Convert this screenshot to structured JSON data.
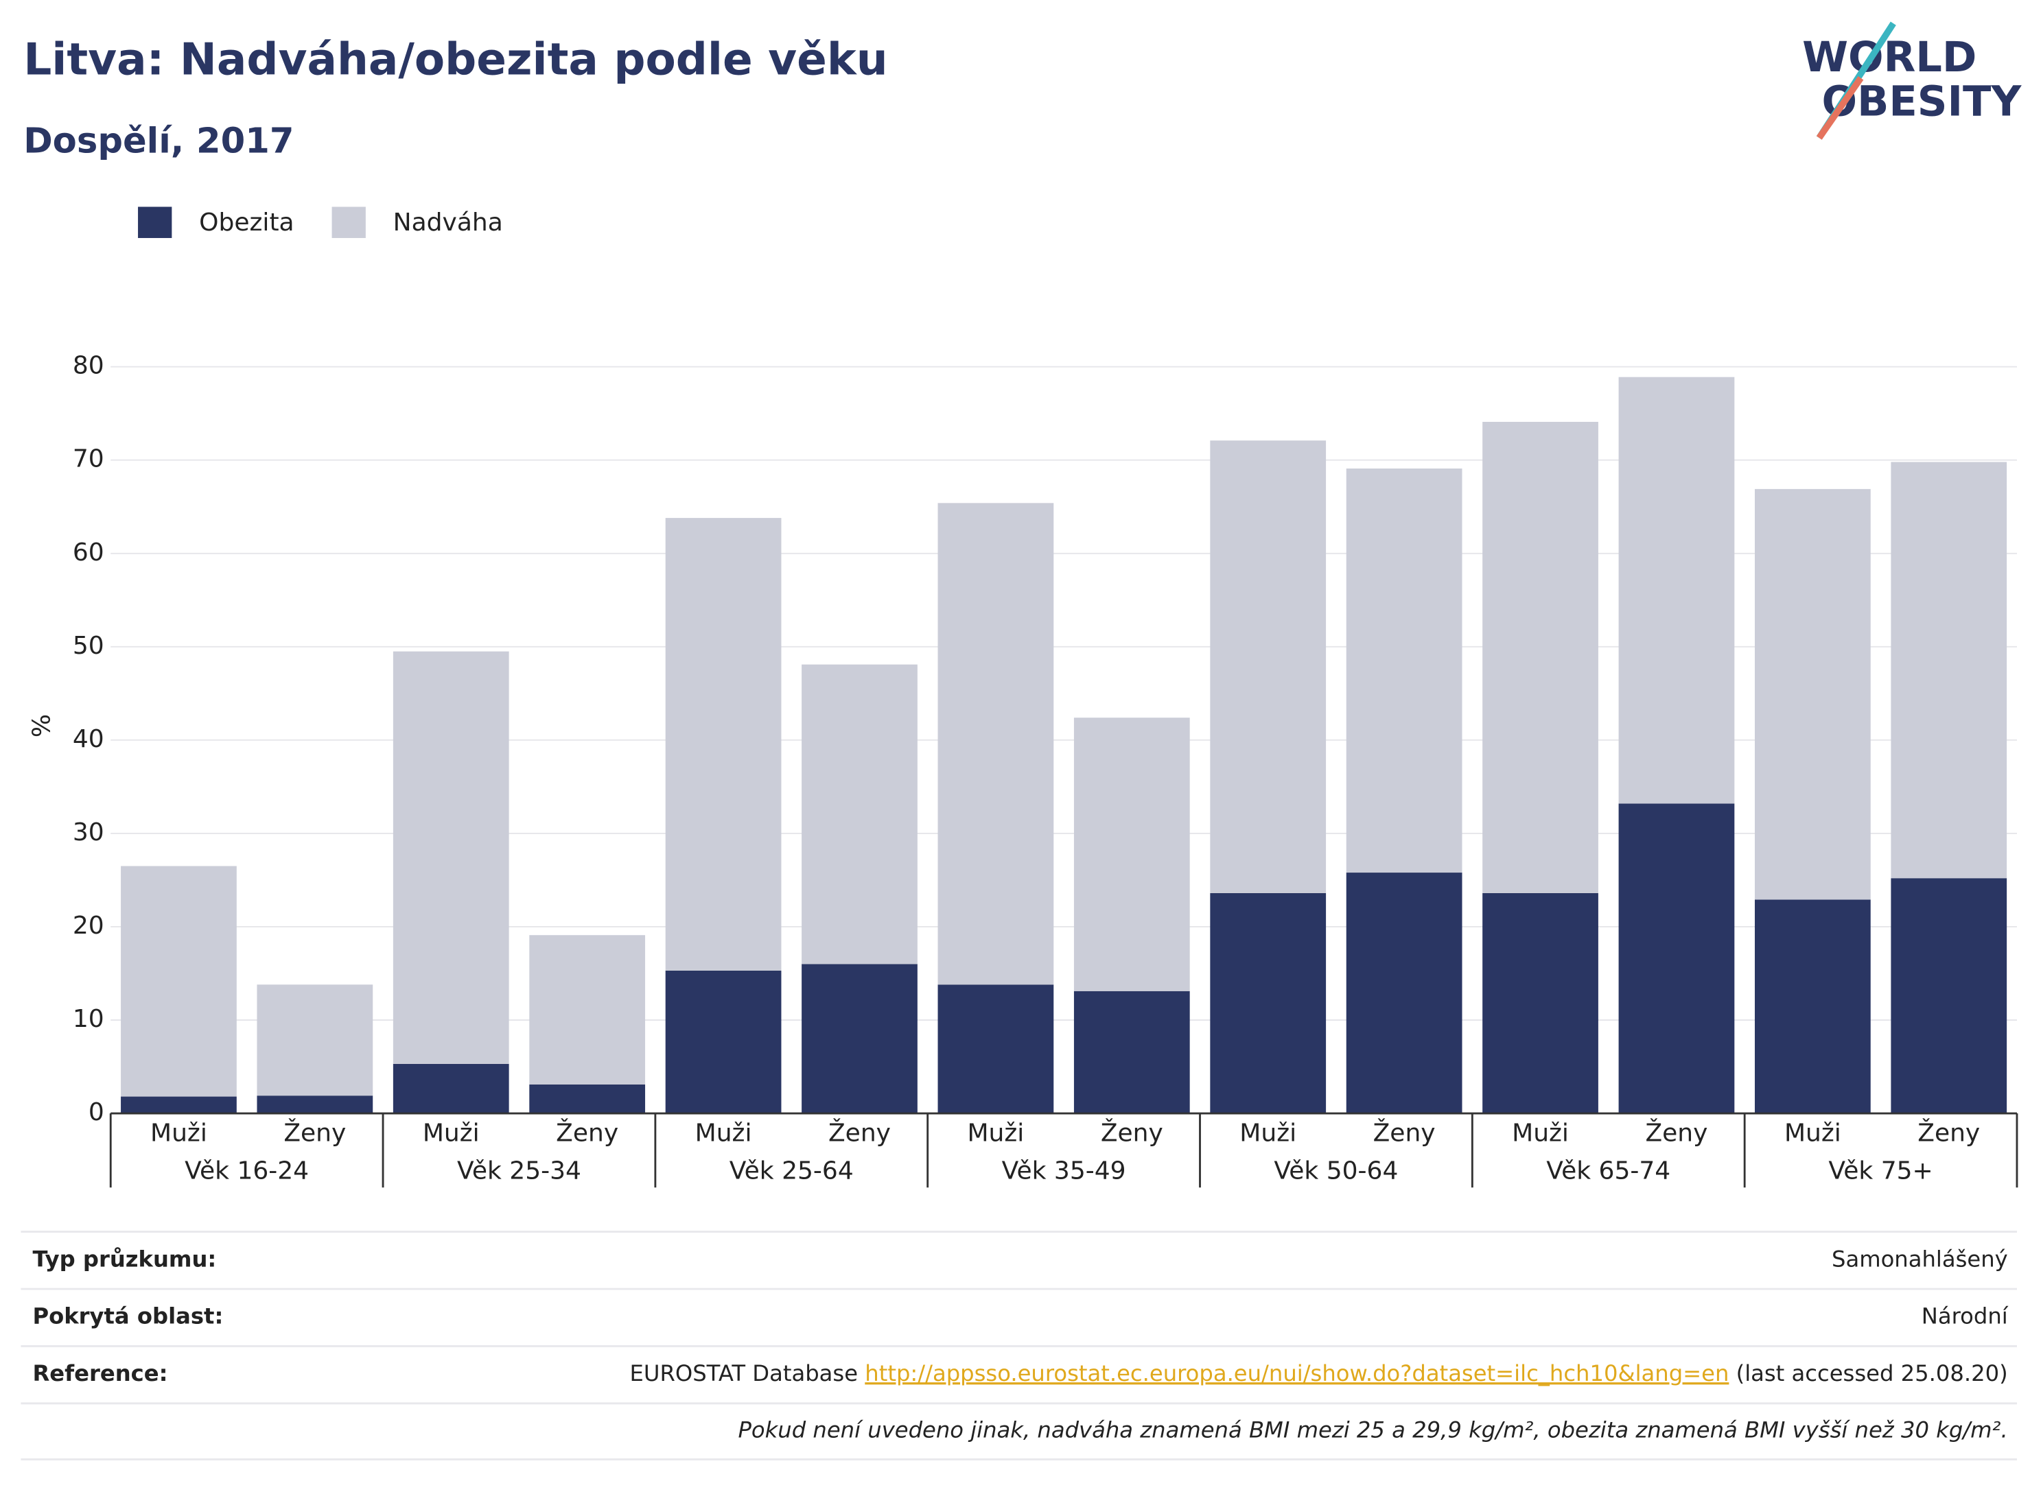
{
  "chart_data": {
    "type": "bar",
    "title": "Litva: Nadváha/obezita podle věku",
    "subtitle": "Dospělí, 2017",
    "logo": [
      "WORLD",
      "OBESITY"
    ],
    "y_label": "%",
    "categories": [
      "Muži",
      "Ženy",
      "Muži",
      "Ženy",
      "Muži",
      "Ženy",
      "Muži",
      "Ženy",
      "Muži",
      "Ženy",
      "Muži",
      "Ženy",
      "Muži",
      "Ženy"
    ],
    "groups": [
      "Věk 16-24",
      "Věk 25-34",
      "Věk 25-64",
      "Věk 35-49",
      "Věk 50-64",
      "Věk 65-74",
      "Věk 75+"
    ],
    "stacked": true,
    "series": [
      {
        "name": "Obezita",
        "color": "#2a3663",
        "values": [
          1.8,
          1.9,
          5.3,
          3.1,
          15.3,
          16.0,
          13.8,
          13.1,
          23.6,
          25.8,
          23.6,
          33.2,
          22.9,
          25.2
        ]
      },
      {
        "name": "Nadváha",
        "color": "#cbcdd8",
        "values": [
          24.7,
          11.9,
          44.2,
          16.0,
          48.5,
          32.1,
          51.6,
          29.3,
          48.5,
          43.3,
          50.5,
          45.7,
          44.0,
          44.6
        ]
      }
    ],
    "ylim": [
      0,
      80
    ],
    "yticks": [
      0,
      10,
      20,
      30,
      40,
      50,
      60,
      70,
      80
    ],
    "grid": true,
    "legend": "top-left"
  },
  "footer": {
    "rows": [
      {
        "label": "Typ průzkumu:",
        "value": "Samonahlášený"
      },
      {
        "label": "Pokrytá oblast:",
        "value": "Národní"
      },
      {
        "label": "Reference:",
        "value": [
          "EUROSTAT Database ",
          "http://appsso.eurostat.ec.europa.eu/nui/show.do?dataset=ilc_hch10&lang=en",
          " (last accessed 25.08.20)"
        ]
      }
    ],
    "note": "Pokud není uvedeno jinak, nadváha znamená BMI mezi 25 a 29,9 kg/m², obezita znamená BMI vyšší než 30 kg/m²."
  }
}
